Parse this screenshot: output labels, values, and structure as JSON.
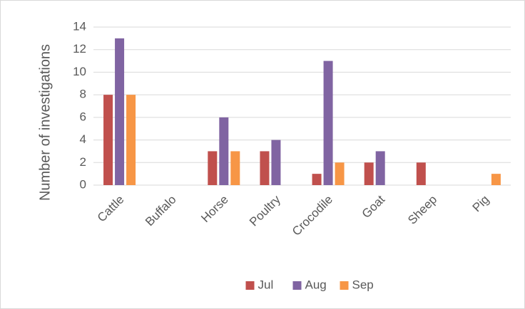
{
  "chart_data": {
    "type": "bar",
    "y_label": "Number of investigations",
    "categories": [
      "Cattle",
      "Buffalo",
      "Horse",
      "Poultry",
      "Crocodile",
      "Goat",
      "Sheep",
      "Pig"
    ],
    "series": [
      {
        "name": "Jul",
        "color": "#c0504d",
        "values": [
          8,
          0,
          3,
          3,
          1,
          2,
          2,
          0
        ]
      },
      {
        "name": "Aug",
        "color": "#8064a2",
        "values": [
          13,
          0,
          6,
          4,
          11,
          3,
          0,
          0
        ]
      },
      {
        "name": "Sep",
        "color": "#f79646",
        "values": [
          8,
          0,
          3,
          0,
          2,
          0,
          0,
          1
        ]
      }
    ],
    "ylim": [
      0,
      14
    ],
    "yticks": [
      0,
      2,
      4,
      6,
      8,
      10,
      12,
      14
    ],
    "grid": true,
    "legend": "bottom"
  }
}
